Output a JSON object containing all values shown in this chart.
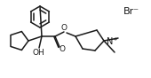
{
  "bg_color": "#ffffff",
  "line_color": "#1a1a1a",
  "line_width": 1.1,
  "font_size": 6.5,
  "figsize": [
    1.7,
    0.88
  ],
  "dpi": 100,
  "br_label": "Br⁻",
  "n_plus_label": "N⁺",
  "oh_label": "OH",
  "o_carbonyl": "O",
  "o_ester": "O"
}
